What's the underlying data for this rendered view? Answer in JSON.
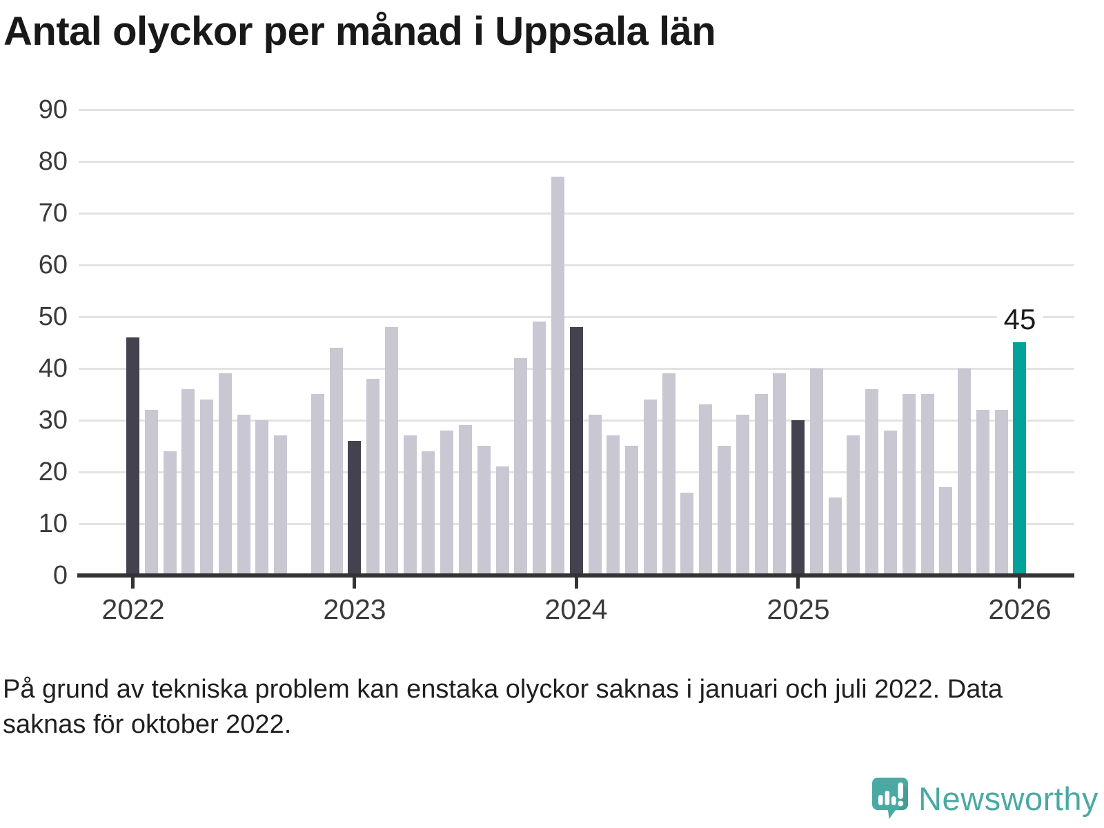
{
  "title": "Antal olyckor per månad i Uppsala län",
  "footnote": {
    "text": "På grund av tekniska problem kan enstaka olyckor saknas i januari och juli 2022. Data saknas för oktober 2022."
  },
  "logo": {
    "text": "Newsworthy"
  },
  "colors": {
    "bar": "#c9c7d2",
    "bar_january": "#454250",
    "bar_current": "#00a29a",
    "grid": "#e3e3e3",
    "axis": "#333333",
    "tick_label": "#3a3a3a",
    "annotation": "#1a1a1a",
    "logo": "#4aa9a3"
  },
  "chart_data": {
    "type": "bar",
    "title": "Antal olyckor per månad i Uppsala län",
    "categories": [
      "2022-01",
      "2022-02",
      "2022-03",
      "2022-04",
      "2022-05",
      "2022-06",
      "2022-07",
      "2022-08",
      "2022-09",
      "2022-10",
      "2022-11",
      "2022-12",
      "2023-01",
      "2023-02",
      "2023-03",
      "2023-04",
      "2023-05",
      "2023-06",
      "2023-07",
      "2023-08",
      "2023-09",
      "2023-10",
      "2023-11",
      "2023-12",
      "2024-01",
      "2024-02",
      "2024-03",
      "2024-04",
      "2024-05",
      "2024-06",
      "2024-07",
      "2024-08",
      "2024-09",
      "2024-10",
      "2024-11",
      "2024-12",
      "2025-01",
      "2025-02",
      "2025-03",
      "2025-04",
      "2025-05",
      "2025-06",
      "2025-07",
      "2025-08",
      "2025-09",
      "2025-10",
      "2025-11",
      "2025-12",
      "2026-01"
    ],
    "values": [
      46,
      32,
      24,
      36,
      34,
      39,
      31,
      30,
      27,
      null,
      35,
      44,
      26,
      38,
      48,
      27,
      24,
      28,
      29,
      25,
      21,
      42,
      49,
      77,
      48,
      31,
      27,
      25,
      34,
      39,
      16,
      33,
      25,
      31,
      35,
      39,
      30,
      40,
      15,
      27,
      36,
      28,
      35,
      35,
      17,
      40,
      32,
      32,
      45
    ],
    "missing_categories": [
      "2022-10"
    ],
    "january_indices": [
      0,
      12,
      24,
      36
    ],
    "current_index": 48,
    "current_value_label": "45",
    "ylim": [
      0,
      90
    ],
    "y_ticks": [
      0,
      10,
      20,
      30,
      40,
      50,
      60,
      70,
      80,
      90
    ],
    "x_tick_years": [
      "2022",
      "2023",
      "2024",
      "2025",
      "2026"
    ],
    "grid": true,
    "legend_position": "none"
  }
}
